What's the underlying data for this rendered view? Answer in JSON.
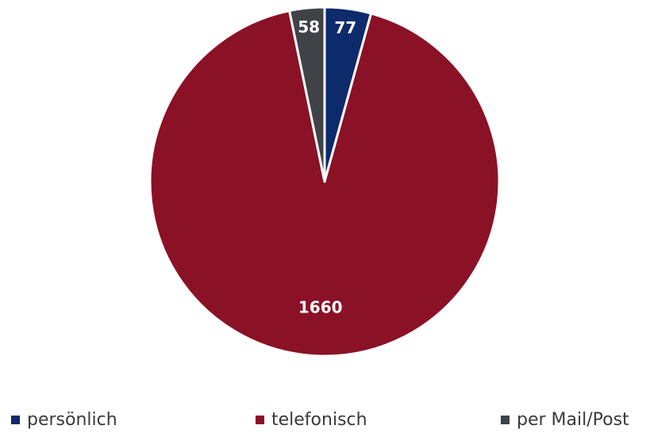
{
  "chart_data": {
    "type": "pie",
    "title": "",
    "slices": [
      {
        "label": "persönlich",
        "value": 77,
        "color": "#0d2a6b"
      },
      {
        "label": "telefonisch",
        "value": 1660,
        "color": "#8b1126"
      },
      {
        "label": "per Mail/Post",
        "value": 58,
        "color": "#3f4347"
      }
    ],
    "data_labels": [
      "77",
      "1660",
      "58"
    ],
    "start": "12 o'clock, clockwise",
    "legend_position": "bottom"
  }
}
